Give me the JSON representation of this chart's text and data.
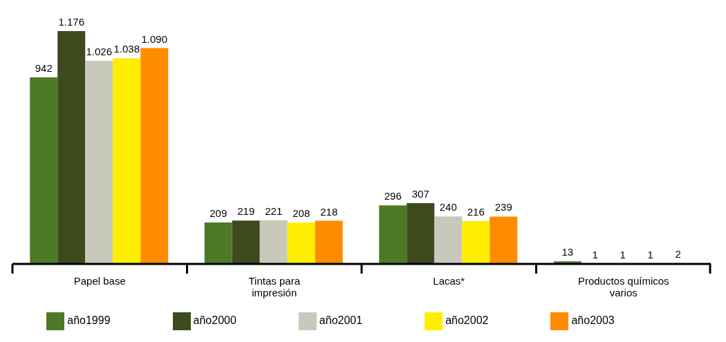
{
  "chart_data": {
    "type": "bar",
    "categories": [
      "Papel base",
      "Tintas para impresión",
      "Lacas*",
      "Productos químicos varios"
    ],
    "series": [
      {
        "name": "año1999",
        "color": "#4e7a27",
        "values": [
          942,
          209,
          296,
          13
        ],
        "value_labels": [
          "942",
          "209",
          "296",
          "13"
        ]
      },
      {
        "name": "año2000",
        "color": "#3d4a1e",
        "values": [
          1176,
          219,
          307,
          1
        ],
        "value_labels": [
          "1.176",
          "219",
          "307",
          "1"
        ]
      },
      {
        "name": "año2001",
        "color": "#c8c9bb",
        "values": [
          1026,
          221,
          240,
          1
        ],
        "value_labels": [
          "1.026",
          "221",
          "240",
          "1"
        ]
      },
      {
        "name": "año2002",
        "color": "#ffee00",
        "values": [
          1038,
          208,
          216,
          1
        ],
        "value_labels": [
          "1.038",
          "208",
          "216",
          "1"
        ]
      },
      {
        "name": "año2003",
        "color": "#ff8c00",
        "values": [
          1090,
          218,
          239,
          2
        ],
        "value_labels": [
          "1.090",
          "218",
          "239",
          "2"
        ]
      }
    ],
    "legend": "bottom"
  }
}
